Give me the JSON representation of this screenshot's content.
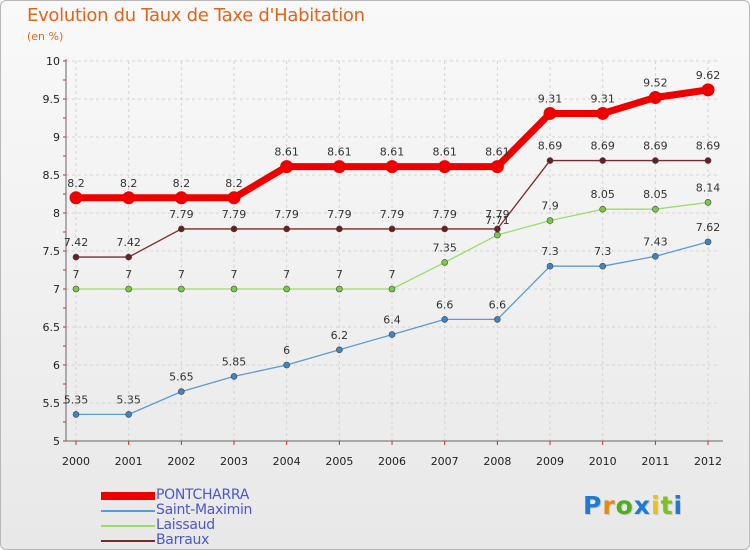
{
  "title": "Evolution du Taux de Taxe d'Habitation",
  "unit": "(en %)",
  "logo": {
    "text": "Proxiti",
    "colors": [
      "#1e7ad3",
      "#e48a17",
      "#4caf1e",
      "#1e7ad3",
      "#e9c01a",
      "#7bc21e",
      "#1e7ad3"
    ]
  },
  "chart_data": {
    "type": "line",
    "x": [
      2000,
      2001,
      2002,
      2003,
      2004,
      2005,
      2006,
      2007,
      2008,
      2009,
      2010,
      2011,
      2012
    ],
    "xlabels": [
      "2000",
      "2001",
      "2002",
      "2003",
      "2004",
      "2005",
      "2006",
      "2007",
      "2008",
      "2009",
      "2010",
      "2011",
      "2012"
    ],
    "ylim": [
      5,
      10
    ],
    "yticks": [
      5,
      5.5,
      6,
      6.5,
      7,
      7.5,
      8,
      8.5,
      9,
      9.5,
      10
    ],
    "yticklabels": [
      "5",
      "5.5",
      "6",
      "6.5",
      "7",
      "7.5",
      "8",
      "8.5",
      "9",
      "9.5",
      "10"
    ],
    "grid": true,
    "legend": "bottom-left",
    "series": [
      {
        "name": "Saint-Maximin",
        "color": "#5c9bd1",
        "marker": "#3f84c3",
        "values": [
          5.35,
          5.35,
          5.65,
          5.85,
          6,
          6.2,
          6.4,
          6.6,
          6.6,
          7.3,
          7.3,
          7.43,
          7.62
        ],
        "labels": [
          "5.35",
          "5.35",
          "5.65",
          "5.85",
          "6",
          "6.2",
          "6.4",
          "6.6",
          "6.6",
          "7.3",
          "7.3",
          "7.43",
          "7.62"
        ]
      },
      {
        "name": "Laissaud",
        "color": "#99dd66",
        "marker": "#77cc44",
        "values": [
          7,
          7,
          7,
          7,
          7,
          7,
          7,
          7.35,
          7.71,
          7.9,
          8.05,
          8.05,
          8.14
        ],
        "labels": [
          "7",
          "7",
          "7",
          "7",
          "7",
          "7",
          "7",
          "7.35",
          "7.71",
          "7.9",
          "8.05",
          "8.05",
          "8.14"
        ]
      },
      {
        "name": "Barraux",
        "color": "#7a2a2a",
        "marker": "#6a2020",
        "values": [
          7.42,
          7.42,
          7.79,
          7.79,
          7.79,
          7.79,
          7.79,
          7.79,
          7.79,
          8.69,
          8.69,
          8.69,
          8.69
        ],
        "labels": [
          "7.42",
          "7.42",
          "7.79",
          "7.79",
          "7.79",
          "7.79",
          "7.79",
          "7.79",
          "7.79",
          "8.69",
          "8.69",
          "8.69",
          "8.69"
        ]
      },
      {
        "name": "PONTCHARRA",
        "color": "#ee0000",
        "marker": "#ee0000",
        "values": [
          8.2,
          8.2,
          8.2,
          8.2,
          8.61,
          8.61,
          8.61,
          8.61,
          8.61,
          9.31,
          9.31,
          9.52,
          9.62
        ],
        "labels": [
          "8.2",
          "8.2",
          "8.2",
          "8.2",
          "8.61",
          "8.61",
          "8.61",
          "8.61",
          "8.61",
          "9.31",
          "9.31",
          "9.52",
          "9.62"
        ]
      }
    ],
    "legend_order": [
      "PONTCHARRA",
      "Saint-Maximin",
      "Laissaud",
      "Barraux"
    ]
  }
}
